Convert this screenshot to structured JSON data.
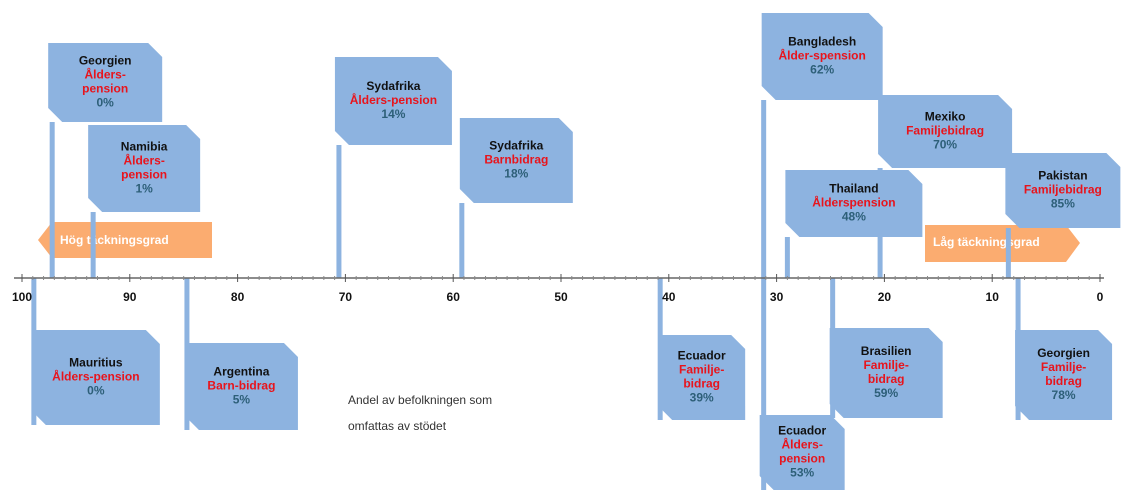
{
  "chart_data": {
    "type": "flags",
    "xlim": [
      100,
      0
    ],
    "xticks": [
      100,
      90,
      80,
      70,
      60,
      50,
      40,
      30,
      20,
      10,
      0
    ],
    "left_arrow": "Hög täckningsgrad",
    "right_arrow": "Låg täckningsgrad",
    "caption": [
      "Andel av befolkningen som",
      "omfattas av stödet"
    ],
    "color": "#8db3e0",
    "flags": [
      {
        "x": 97.2,
        "country": "Georgien",
        "program": [
          "Ålders-",
          "pension"
        ],
        "share": "0%"
      },
      {
        "x": 93.4,
        "country": "Namibia",
        "program": [
          "Ålders-",
          "pension"
        ],
        "share": "1%"
      },
      {
        "x": 70.6,
        "country": "Sydafrika",
        "program": [
          "Ålders-pension"
        ],
        "share": "14%"
      },
      {
        "x": 59.2,
        "country": "Sydafrika",
        "program": [
          "Barnbidrag"
        ],
        "share": "18%"
      },
      {
        "x": 31.2,
        "country": "Bangladesh",
        "program": [
          "Ålder-spension"
        ],
        "share": "62%"
      },
      {
        "x": 20.4,
        "country": "Mexiko",
        "program": [
          "Familjebidrag"
        ],
        "share": "70%"
      },
      {
        "x": 29.0,
        "country": "Thailand",
        "program": [
          "Ålderspension"
        ],
        "share": "48%"
      },
      {
        "x": 8.5,
        "country": "Pakistan",
        "program": [
          "Familjebidrag"
        ],
        "share": "85%"
      },
      {
        "x": 98.9,
        "country": "Mauritius",
        "program": [
          "Ålders-pension"
        ],
        "share": "0%"
      },
      {
        "x": 84.7,
        "country": "Argentina",
        "program": [
          "Barn-bidrag"
        ],
        "share": "5%"
      },
      {
        "x": 40.8,
        "country": "Ecuador",
        "program": [
          "Familje-",
          "bidrag"
        ],
        "share": "39%"
      },
      {
        "x": 31.2,
        "country": "Ecuador",
        "program": [
          "Ålders-",
          "pension"
        ],
        "share": "53%"
      },
      {
        "x": 24.8,
        "country": "Brasilien",
        "program": [
          "Familje-",
          "bidrag"
        ],
        "share": "59%"
      },
      {
        "x": 7.6,
        "country": "Georgien",
        "program": [
          "Familje-",
          "bidrag"
        ],
        "share": "78%"
      }
    ]
  }
}
